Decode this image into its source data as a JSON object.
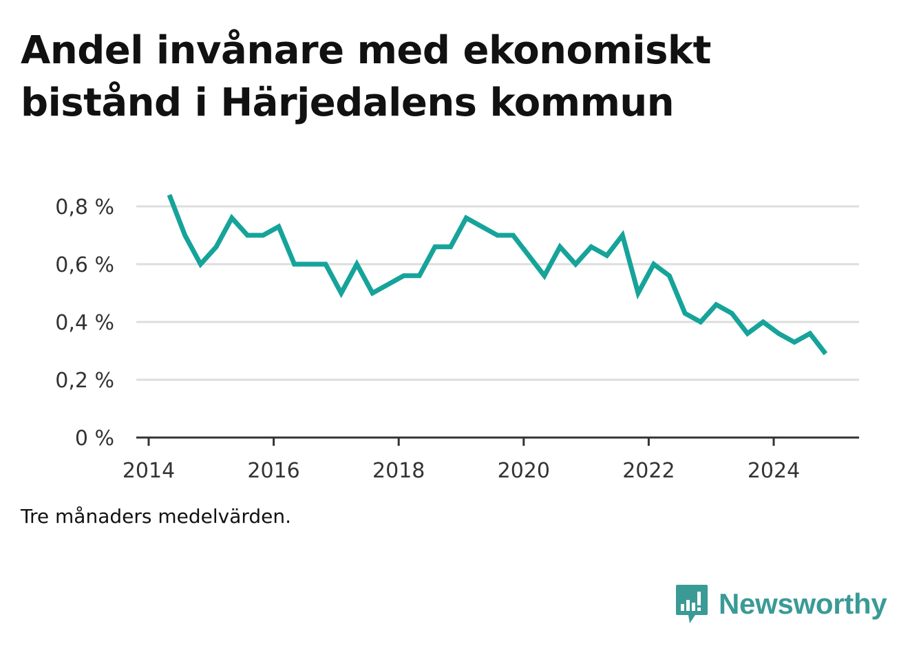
{
  "title": "Andel invånare med ekonomiskt bistånd i Härjedalens kommun",
  "note": "Tre månaders medelvärden.",
  "brand": {
    "name": "Newsworthy",
    "icon": "newsworthy-logo-icon",
    "color": "#3a9a96"
  },
  "colors": {
    "line": "#16a39a",
    "grid": "#dddddd",
    "axis": "#333333"
  },
  "chart_data": {
    "type": "line",
    "title": "Andel invånare med ekonomiskt bistånd i Härjedalens kommun",
    "xlabel": "",
    "ylabel": "",
    "xlim": [
      2014,
      2025.4
    ],
    "ylim": [
      0,
      0.8
    ],
    "grid": true,
    "legend": "none",
    "x_ticks": [
      2014,
      2016,
      2018,
      2020,
      2022,
      2024
    ],
    "x_tick_labels": [
      "2014",
      "2016",
      "2018",
      "2020",
      "2022",
      "2024"
    ],
    "y_ticks": [
      0,
      0.2,
      0.4,
      0.6,
      0.8
    ],
    "y_tick_labels": [
      "0 %",
      "0,2 %",
      "0,4 %",
      "0,6 %",
      "0,8 %"
    ],
    "series": [
      {
        "x": [
          2014.33,
          2014.58,
          2014.83,
          2015.08,
          2015.33,
          2015.58,
          2015.83,
          2016.08,
          2016.33,
          2016.58,
          2016.83,
          2017.08,
          2017.33,
          2017.58,
          2017.83,
          2018.08,
          2018.33,
          2018.58,
          2018.83,
          2019.08,
          2019.33,
          2019.58,
          2019.83,
          2020.08,
          2020.33,
          2020.58,
          2020.83,
          2021.08,
          2021.33,
          2021.58,
          2021.83,
          2022.08,
          2022.33,
          2022.58,
          2022.83,
          2023.08,
          2023.33,
          2023.58,
          2023.83,
          2024.08,
          2024.33,
          2024.58,
          2024.83
        ],
        "values": [
          0.84,
          0.7,
          0.6,
          0.66,
          0.76,
          0.7,
          0.7,
          0.73,
          0.6,
          0.6,
          0.6,
          0.5,
          0.6,
          0.5,
          0.53,
          0.56,
          0.56,
          0.66,
          0.66,
          0.76,
          0.73,
          0.7,
          0.7,
          0.63,
          0.56,
          0.66,
          0.6,
          0.66,
          0.63,
          0.7,
          0.5,
          0.6,
          0.56,
          0.43,
          0.4,
          0.46,
          0.43,
          0.36,
          0.4,
          0.36,
          0.33,
          0.36,
          0.29
        ]
      }
    ]
  }
}
